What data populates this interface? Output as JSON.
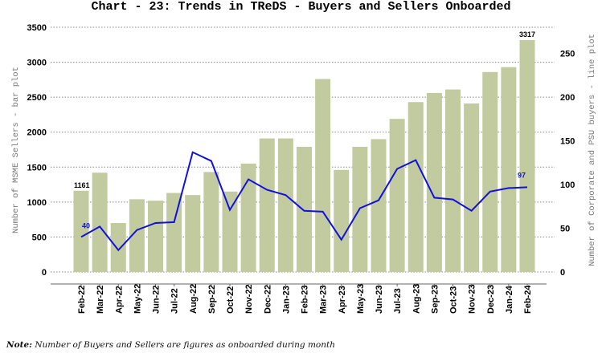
{
  "chart_data": {
    "type": "bar+line",
    "title": "Chart - 23: Trends in TReDS - Buyers and Sellers Onboarded",
    "ylabel_left": "Number of MSME Sellers - bar plot",
    "ylabel_right": "Number of Corporate and PSU buyers - line plot",
    "ylim_left": [
      0,
      3500
    ],
    "ylim_right": [
      0,
      280
    ],
    "yticks_left": [
      0,
      500,
      1000,
      1500,
      2000,
      2500,
      3000,
      3500
    ],
    "yticks_right": [
      0,
      50,
      100,
      150,
      200,
      250
    ],
    "grid": true,
    "categories": [
      "Feb-22",
      "Mar-22",
      "Apr-22",
      "May-22",
      "Jun-22",
      "Jul-22",
      "Aug-22",
      "Sep-22",
      "Oct-22",
      "Nov-22",
      "Dec-22",
      "Jan-23",
      "Feb-23",
      "Mar-23",
      "Apr-23",
      "May-23",
      "Jun-23",
      "Jul-23",
      "Aug-23",
      "Sep-23",
      "Oct-23",
      "Nov-23",
      "Dec-23",
      "Jan-24",
      "Feb-24"
    ],
    "series": [
      {
        "type": "bar",
        "axis": "left",
        "color": "#c2cba0",
        "values": [
          1161,
          1420,
          700,
          1040,
          1020,
          1130,
          1100,
          1430,
          1150,
          1550,
          1910,
          1910,
          1790,
          2760,
          1460,
          1790,
          1900,
          2190,
          2430,
          2560,
          2610,
          2410,
          2860,
          2930,
          3317
        ]
      },
      {
        "type": "line",
        "axis": "right",
        "color": "#1010e0",
        "values": [
          40,
          52,
          25,
          48,
          56,
          57,
          137,
          127,
          71,
          106,
          94,
          88,
          70,
          69,
          37,
          73,
          82,
          118,
          128,
          85,
          83,
          70,
          92,
          96,
          97
        ]
      }
    ],
    "data_labels": {
      "bar_first": "1161",
      "bar_last": "3317",
      "line_first": "40",
      "line_last": "97"
    }
  },
  "note": {
    "prefix": "Note:",
    "text": " Number of Buyers and Sellers are figures as onboarded during month"
  }
}
